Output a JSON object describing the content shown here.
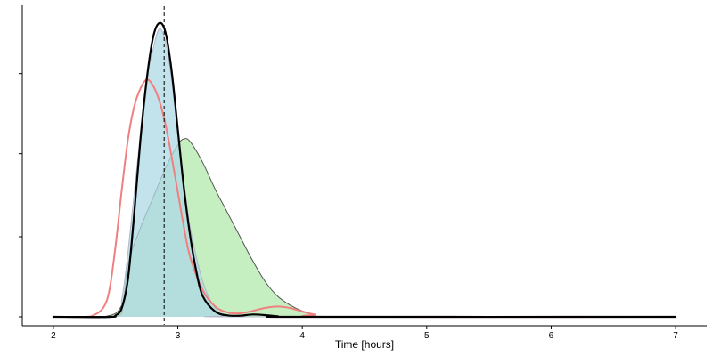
{
  "chart_data": {
    "type": "area",
    "title": "",
    "xlabel": "Time [hours]",
    "ylabel": "",
    "xlim": [
      1.75,
      7.25
    ],
    "ylim": [
      -0.03,
      1.05
    ],
    "x_ticks": [
      2,
      3,
      4,
      5,
      6,
      7
    ],
    "x_tick_labels": [
      "2",
      "3",
      "4",
      "5",
      "6",
      "7"
    ],
    "y_ticks": [
      0,
      0.27,
      0.55,
      0.82
    ],
    "y_tick_labels": [
      "",
      "",
      "",
      ""
    ],
    "grid": false,
    "legend": "none",
    "reference_line": {
      "x": 2.89,
      "style": "dashed",
      "color": "#000000"
    },
    "series": [
      {
        "fill": "#a8e6a0",
        "stroke": "#555555",
        "fill_opacity": 0.65,
        "filled": true,
        "points": [
          [
            2.0,
            0.0
          ],
          [
            2.4,
            0.0
          ],
          [
            2.55,
            0.04
          ],
          [
            2.6,
            0.18
          ],
          [
            2.7,
            0.3
          ],
          [
            2.8,
            0.4
          ],
          [
            2.9,
            0.5
          ],
          [
            3.0,
            0.58
          ],
          [
            3.05,
            0.6
          ],
          [
            3.1,
            0.59
          ],
          [
            3.2,
            0.52
          ],
          [
            3.3,
            0.43
          ],
          [
            3.4,
            0.35
          ],
          [
            3.5,
            0.27
          ],
          [
            3.6,
            0.19
          ],
          [
            3.7,
            0.12
          ],
          [
            3.8,
            0.07
          ],
          [
            3.9,
            0.04
          ],
          [
            4.0,
            0.02
          ],
          [
            4.1,
            0.008
          ],
          [
            4.25,
            0.0
          ],
          [
            7.0,
            0.0
          ]
        ]
      },
      {
        "fill": "#add8e6",
        "stroke": "#b0b8c8",
        "fill_opacity": 0.75,
        "filled": true,
        "points": [
          [
            2.0,
            0.0
          ],
          [
            2.5,
            0.0
          ],
          [
            2.55,
            0.06
          ],
          [
            2.6,
            0.22
          ],
          [
            2.7,
            0.62
          ],
          [
            2.75,
            0.8
          ],
          [
            2.8,
            0.9
          ],
          [
            2.85,
            0.97
          ],
          [
            2.9,
            0.93
          ],
          [
            2.95,
            0.8
          ],
          [
            3.0,
            0.62
          ],
          [
            3.05,
            0.45
          ],
          [
            3.1,
            0.3
          ],
          [
            3.2,
            0.12
          ],
          [
            3.3,
            0.03
          ],
          [
            3.4,
            0.005
          ],
          [
            3.5,
            0.0
          ],
          [
            7.0,
            0.0
          ]
        ]
      },
      {
        "fill": "none",
        "stroke": "#f08080",
        "stroke_opacity": 1,
        "filled": false,
        "stroke_width": 2,
        "points": [
          [
            2.0,
            0.0
          ],
          [
            2.25,
            0.0
          ],
          [
            2.32,
            0.005
          ],
          [
            2.4,
            0.03
          ],
          [
            2.45,
            0.09
          ],
          [
            2.5,
            0.24
          ],
          [
            2.55,
            0.43
          ],
          [
            2.6,
            0.6
          ],
          [
            2.65,
            0.71
          ],
          [
            2.7,
            0.77
          ],
          [
            2.75,
            0.8
          ],
          [
            2.8,
            0.78
          ],
          [
            2.85,
            0.73
          ],
          [
            2.9,
            0.65
          ],
          [
            2.95,
            0.54
          ],
          [
            3.0,
            0.42
          ],
          [
            3.05,
            0.3
          ],
          [
            3.1,
            0.2
          ],
          [
            3.2,
            0.09
          ],
          [
            3.3,
            0.035
          ],
          [
            3.4,
            0.015
          ],
          [
            3.5,
            0.012
          ],
          [
            3.6,
            0.02
          ],
          [
            3.7,
            0.03
          ],
          [
            3.8,
            0.035
          ],
          [
            3.9,
            0.03
          ],
          [
            4.0,
            0.018
          ],
          [
            4.1,
            0.008
          ],
          [
            4.25,
            0.0
          ],
          [
            7.0,
            0.0
          ]
        ]
      },
      {
        "fill": "none",
        "stroke": "#000000",
        "stroke_opacity": 1,
        "filled": false,
        "stroke_width": 2.2,
        "points": [
          [
            2.0,
            0.0
          ],
          [
            2.45,
            0.0
          ],
          [
            2.5,
            0.005
          ],
          [
            2.55,
            0.03
          ],
          [
            2.6,
            0.13
          ],
          [
            2.65,
            0.35
          ],
          [
            2.7,
            0.6
          ],
          [
            2.75,
            0.8
          ],
          [
            2.8,
            0.94
          ],
          [
            2.85,
            0.99
          ],
          [
            2.9,
            0.96
          ],
          [
            2.95,
            0.83
          ],
          [
            3.0,
            0.63
          ],
          [
            3.05,
            0.43
          ],
          [
            3.1,
            0.27
          ],
          [
            3.15,
            0.15
          ],
          [
            3.2,
            0.07
          ],
          [
            3.3,
            0.018
          ],
          [
            3.4,
            0.005
          ],
          [
            3.5,
            0.004
          ],
          [
            3.6,
            0.008
          ],
          [
            3.7,
            0.006
          ],
          [
            3.8,
            0.002
          ],
          [
            4.0,
            0.0
          ],
          [
            7.0,
            0.0
          ]
        ]
      }
    ]
  }
}
